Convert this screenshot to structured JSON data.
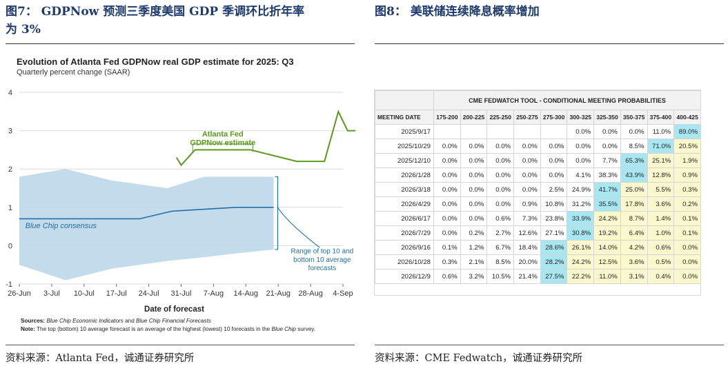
{
  "left_panel": {
    "figure_title_line1": "图7：  GDPNow 预测三季度美国 GDP 季调环比折年率",
    "figure_title_line2": "为 3%",
    "source": "资料来源：Atlanta Fed，诚通证券研究所",
    "notes": {
      "sources_label": "Sources:",
      "sources_italic1": "Blue Chip Economic Indicators",
      "sources_mid": " and ",
      "sources_italic2": "Blue Chip Financial Forecasts",
      "note_label": "Note:",
      "note_text_pre": " The top (bottom) 10 average forecast is an average of the highest (lowest) 10 forecasts in the ",
      "note_italic": "Blue Chip",
      "note_text_post": " survey."
    }
  },
  "right_panel": {
    "figure_title": "图8：  美联储连续降息概率增加",
    "source": "资料来源：CME Fedwatch，诚通证券研究所",
    "table": {
      "title": "CME FEDWATCH TOOL - CONDITIONAL MEETING PROBABILITIES",
      "date_header": "MEETING DATE",
      "columns": [
        "175-200",
        "200-225",
        "225-250",
        "250-275",
        "275-300",
        "300-325",
        "325-350",
        "350-375",
        "375-400",
        "400-425"
      ],
      "rows": [
        {
          "date": "2025/9/17",
          "values": [
            "",
            "",
            "",
            "",
            "",
            "0.0%",
            "0.0%",
            "0.0%",
            "11.0%",
            "89.0%"
          ]
        },
        {
          "date": "2025/10/29",
          "values": [
            "0.0%",
            "0.0%",
            "0.0%",
            "0.0%",
            "0.0%",
            "0.0%",
            "0.0%",
            "8.5%",
            "71.0%",
            "20.5%"
          ]
        },
        {
          "date": "2025/12/10",
          "values": [
            "0.0%",
            "0.0%",
            "0.0%",
            "0.0%",
            "0.0%",
            "0.0%",
            "7.7%",
            "65.3%",
            "25.1%",
            "1.9%"
          ]
        },
        {
          "date": "2026/1/28",
          "values": [
            "0.0%",
            "0.0%",
            "0.0%",
            "0.0%",
            "0.0%",
            "4.1%",
            "38.3%",
            "43.9%",
            "12.8%",
            "0.9%"
          ]
        },
        {
          "date": "2026/3/18",
          "values": [
            "0.0%",
            "0.0%",
            "0.0%",
            "0.0%",
            "2.5%",
            "24.9%",
            "41.7%",
            "25.0%",
            "5.5%",
            "0.3%"
          ]
        },
        {
          "date": "2026/4/29",
          "values": [
            "0.0%",
            "0.0%",
            "0.0%",
            "0.9%",
            "10.8%",
            "31.2%",
            "35.5%",
            "17.8%",
            "3.6%",
            "0.2%"
          ]
        },
        {
          "date": "2026/6/17",
          "values": [
            "0.0%",
            "0.0%",
            "0.6%",
            "7.3%",
            "23.8%",
            "33.9%",
            "24.2%",
            "8.7%",
            "1.4%",
            "0.1%"
          ]
        },
        {
          "date": "2026/7/29",
          "values": [
            "0.0%",
            "0.2%",
            "2.7%",
            "12.6%",
            "27.1%",
            "30.8%",
            "19.2%",
            "6.4%",
            "1.0%",
            "0.1%"
          ]
        },
        {
          "date": "2026/9/16",
          "values": [
            "0.1%",
            "1.2%",
            "6.7%",
            "18.4%",
            "28.6%",
            "26.1%",
            "14.0%",
            "4.2%",
            "0.6%",
            "0.0%"
          ]
        },
        {
          "date": "2026/10/28",
          "values": [
            "0.3%",
            "2.1%",
            "8.5%",
            "20.0%",
            "28.2%",
            "24.2%",
            "12.5%",
            "3.6%",
            "0.5%",
            "0.0%"
          ]
        },
        {
          "date": "2026/12/9",
          "values": [
            "0.6%",
            "3.2%",
            "10.5%",
            "21.4%",
            "27.5%",
            "22.2%",
            "11.0%",
            "3.1%",
            "0.4%",
            "0.0%"
          ]
        }
      ],
      "highlight": [
        [
          9
        ],
        [
          8
        ],
        [
          7
        ],
        [
          7
        ],
        [
          6
        ],
        [
          6
        ],
        [
          5
        ],
        [
          5
        ],
        [
          4
        ],
        [
          4
        ],
        [
          4
        ]
      ],
      "colors": {
        "highlight": "#a8e6f2",
        "band": "#fbf8cd",
        "blank": "#ffffff"
      }
    }
  },
  "chart_data": {
    "type": "line",
    "title": "Evolution of Atlanta Fed GDPNow real GDP estimate for 2025: Q3",
    "subtitle": "Quarterly percent change (SAAR)",
    "xlabel": "Date of forecast",
    "ylabel": "",
    "ylim": [
      -1,
      4
    ],
    "yticks": [
      "4",
      "3",
      "2",
      "1",
      "0",
      "-1"
    ],
    "x_tick_labels": [
      "26-Jun",
      "3-Jul",
      "10-Jul",
      "17-Jul",
      "24-Jul",
      "31-Jul",
      "7-Aug",
      "14-Aug",
      "21-Aug",
      "28-Aug",
      "4-Sep"
    ],
    "x_day_range": [
      0,
      70
    ],
    "series": [
      {
        "name": "Atlanta Fed GDPNow estimate",
        "color": "#5a9a1e",
        "x": [
          34,
          35,
          38,
          44,
          50,
          55,
          60,
          66,
          69,
          71,
          73
        ],
        "y": [
          2.3,
          2.1,
          2.5,
          2.5,
          2.5,
          2.35,
          2.2,
          2.2,
          3.5,
          3.0,
          3.0
        ]
      },
      {
        "name": "Blue Chip consensus",
        "color": "#1f6fa8",
        "x": [
          0,
          5,
          12,
          19,
          26,
          33,
          40,
          47,
          54,
          55
        ],
        "y": [
          0.7,
          0.7,
          0.7,
          0.7,
          0.7,
          0.9,
          0.95,
          1.0,
          1.0,
          1.0
        ]
      }
    ],
    "range_band": {
      "name": "Range of top 10 and bottom 10 average forecasts",
      "color": "#bcd7e8",
      "x": [
        0,
        10,
        20,
        32,
        40,
        47,
        55
      ],
      "upper": [
        1.8,
        2.0,
        1.7,
        1.5,
        1.8,
        1.8,
        1.8
      ],
      "lower": [
        -0.5,
        -0.9,
        -0.6,
        -0.4,
        -0.3,
        -0.2,
        -0.1
      ]
    },
    "annotations": [
      {
        "text_line1": "Atlanta Fed",
        "text_line2": "GDPNow estimate",
        "color": "#5a9a1e"
      },
      {
        "text": "Blue Chip consensus",
        "color": "#1f6fa8"
      },
      {
        "text_line1": "Range of top 10 and",
        "text_line2": "bottom 10 average",
        "text_line3": "forecasts",
        "color": "#1f6fa8"
      }
    ]
  }
}
